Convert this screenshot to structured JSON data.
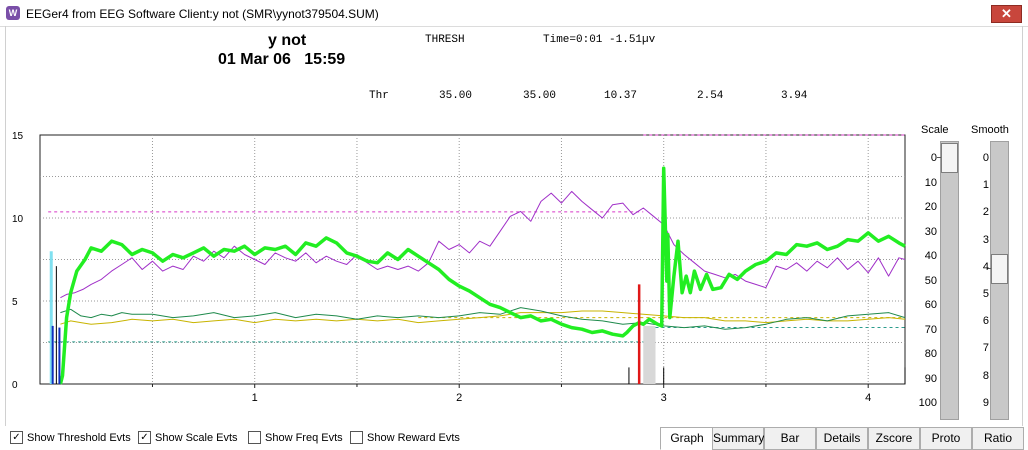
{
  "window": {
    "title": "EEGer4 from EEG Software  Client:y not  (SMR\\yynot379504.SUM)",
    "close_label": "✕"
  },
  "header": {
    "client": "y not",
    "date": "01 Mar 06   15:59",
    "mode": "THRESH",
    "time_readout": "Time=0:01 -1.51µv",
    "thr_label": "Thr",
    "thresholds": [
      "35.00",
      "35.00",
      "10.37",
      "2.54",
      "3.94"
    ]
  },
  "chart_data": {
    "type": "line",
    "xlim": [
      -0.05,
      4.18
    ],
    "ylim": [
      0,
      15
    ],
    "x_ticks": [
      "1",
      "2",
      "3",
      "4"
    ],
    "y_ticks": [
      "0",
      "5",
      "10",
      "15"
    ],
    "grid": true,
    "colors": {
      "bright_green": "#22ee22",
      "magenta": "#a030c8",
      "dark_green": "#1f8a4c",
      "yellow": "#c8b400",
      "pink_threshold": "#d838c8",
      "teal_threshold": "#2c9c8c"
    },
    "series": [
      {
        "color": "bright_green",
        "width": 3.5,
        "points": [
          [
            0.05,
            0
          ],
          [
            0.06,
            0.5
          ],
          [
            0.08,
            4
          ],
          [
            0.1,
            5.5
          ],
          [
            0.13,
            6.8
          ],
          [
            0.17,
            7.5
          ],
          [
            0.2,
            8.2
          ],
          [
            0.25,
            8
          ],
          [
            0.3,
            8.6
          ],
          [
            0.35,
            8.4
          ],
          [
            0.4,
            7.8
          ],
          [
            0.45,
            8.1
          ],
          [
            0.5,
            7.9
          ],
          [
            0.55,
            7.4
          ],
          [
            0.6,
            7.8
          ],
          [
            0.65,
            7.6
          ],
          [
            0.7,
            7.9
          ],
          [
            0.75,
            8.2
          ],
          [
            0.8,
            7.7
          ],
          [
            0.85,
            8.1
          ],
          [
            0.9,
            8
          ],
          [
            0.95,
            8.3
          ],
          [
            1,
            7.8
          ],
          [
            1.05,
            8.2
          ],
          [
            1.1,
            8.1
          ],
          [
            1.15,
            8.3
          ],
          [
            1.2,
            7.8
          ],
          [
            1.25,
            8.5
          ],
          [
            1.3,
            8.3
          ],
          [
            1.35,
            8.8
          ],
          [
            1.4,
            8.5
          ],
          [
            1.45,
            7.9
          ],
          [
            1.5,
            7.7
          ],
          [
            1.55,
            7.4
          ],
          [
            1.6,
            7.3
          ],
          [
            1.65,
            7.9
          ],
          [
            1.7,
            7.5
          ],
          [
            1.75,
            8.1
          ],
          [
            1.8,
            7.7
          ],
          [
            1.85,
            7.3
          ],
          [
            1.9,
            6.9
          ],
          [
            1.95,
            6.3
          ],
          [
            2,
            5.9
          ],
          [
            2.05,
            5.6
          ],
          [
            2.1,
            5.2
          ],
          [
            2.15,
            4.8
          ],
          [
            2.2,
            4.6
          ],
          [
            2.25,
            4.3
          ],
          [
            2.3,
            4
          ],
          [
            2.35,
            4.1
          ],
          [
            2.4,
            3.8
          ],
          [
            2.45,
            3.9
          ],
          [
            2.5,
            3.6
          ],
          [
            2.55,
            3.4
          ],
          [
            2.6,
            3.3
          ],
          [
            2.65,
            3.1
          ],
          [
            2.7,
            3.2
          ],
          [
            2.75,
            3
          ],
          [
            2.8,
            2.9
          ],
          [
            2.82,
            3.1
          ],
          [
            2.85,
            3.5
          ],
          [
            2.88,
            3.7
          ],
          [
            2.9,
            3.6
          ],
          [
            2.93,
            3.9
          ],
          [
            2.97,
            3.6
          ],
          [
            2.99,
            3.5
          ],
          [
            3,
            13
          ],
          [
            3.01,
            8.7
          ],
          [
            3.015,
            6.2
          ],
          [
            3.02,
            9
          ],
          [
            3.03,
            4
          ],
          [
            3.05,
            6.5
          ],
          [
            3.07,
            8.6
          ],
          [
            3.09,
            5.5
          ],
          [
            3.11,
            6.5
          ],
          [
            3.13,
            5.5
          ],
          [
            3.15,
            6.8
          ],
          [
            3.18,
            5.7
          ],
          [
            3.21,
            6.6
          ],
          [
            3.24,
            5.7
          ],
          [
            3.28,
            5.8
          ],
          [
            3.32,
            6.6
          ],
          [
            3.36,
            6.3
          ],
          [
            3.4,
            6.8
          ],
          [
            3.45,
            7.2
          ],
          [
            3.5,
            7.4
          ],
          [
            3.55,
            7.9
          ],
          [
            3.6,
            7.8
          ],
          [
            3.65,
            8.4
          ],
          [
            3.7,
            8.3
          ],
          [
            3.75,
            8.5
          ],
          [
            3.8,
            8.1
          ],
          [
            3.85,
            8.3
          ],
          [
            3.9,
            8.7
          ],
          [
            3.95,
            8.6
          ],
          [
            4,
            9.1
          ],
          [
            4.05,
            8.6
          ],
          [
            4.1,
            8.9
          ],
          [
            4.15,
            8.5
          ],
          [
            4.18,
            8.3
          ]
        ]
      },
      {
        "color": "magenta",
        "width": 1,
        "points": [
          [
            0.05,
            5.2
          ],
          [
            0.08,
            5.4
          ],
          [
            0.12,
            5.5
          ],
          [
            0.16,
            5.7
          ],
          [
            0.2,
            6
          ],
          [
            0.25,
            6.3
          ],
          [
            0.3,
            6.8
          ],
          [
            0.35,
            7.2
          ],
          [
            0.4,
            7.6
          ],
          [
            0.45,
            6.9
          ],
          [
            0.5,
            7.4
          ],
          [
            0.55,
            6.8
          ],
          [
            0.6,
            7.1
          ],
          [
            0.65,
            6.9
          ],
          [
            0.7,
            7.7
          ],
          [
            0.75,
            7.4
          ],
          [
            0.8,
            8
          ],
          [
            0.85,
            7.6
          ],
          [
            0.9,
            8.3
          ],
          [
            0.95,
            7.8
          ],
          [
            1,
            7.5
          ],
          [
            1.05,
            7.2
          ],
          [
            1.1,
            7.9
          ],
          [
            1.15,
            7.6
          ],
          [
            1.2,
            7.4
          ],
          [
            1.25,
            7.9
          ],
          [
            1.3,
            7.3
          ],
          [
            1.35,
            7.7
          ],
          [
            1.4,
            7.4
          ],
          [
            1.45,
            7.2
          ],
          [
            1.5,
            7.8
          ],
          [
            1.55,
            7.3
          ],
          [
            1.6,
            6.9
          ],
          [
            1.65,
            7.1
          ],
          [
            1.7,
            6.9
          ],
          [
            1.75,
            7.1
          ],
          [
            1.8,
            6.8
          ],
          [
            1.85,
            7.3
          ],
          [
            1.9,
            8.6
          ],
          [
            1.95,
            8.1
          ],
          [
            2,
            8.4
          ],
          [
            2.05,
            7.9
          ],
          [
            2.1,
            8.6
          ],
          [
            2.15,
            8.3
          ],
          [
            2.2,
            9.2
          ],
          [
            2.25,
            10.1
          ],
          [
            2.3,
            10.4
          ],
          [
            2.35,
            9.8
          ],
          [
            2.4,
            11
          ],
          [
            2.45,
            11.5
          ],
          [
            2.5,
            10.9
          ],
          [
            2.55,
            11.6
          ],
          [
            2.6,
            11
          ],
          [
            2.65,
            10.5
          ],
          [
            2.7,
            10
          ],
          [
            2.75,
            10.8
          ],
          [
            2.8,
            10.9
          ],
          [
            2.85,
            10.2
          ],
          [
            2.9,
            10.6
          ],
          [
            2.95,
            10.1
          ],
          [
            3,
            9.6
          ],
          [
            3.05,
            8.4
          ],
          [
            3.1,
            7.8
          ],
          [
            3.15,
            7.3
          ],
          [
            3.2,
            6.8
          ],
          [
            3.25,
            6.6
          ],
          [
            3.3,
            6.4
          ],
          [
            3.35,
            6.6
          ],
          [
            3.4,
            6.2
          ],
          [
            3.45,
            6
          ],
          [
            3.5,
            5.8
          ],
          [
            3.55,
            7.1
          ],
          [
            3.6,
            6.9
          ],
          [
            3.65,
            7.3
          ],
          [
            3.7,
            6.8
          ],
          [
            3.75,
            7.4
          ],
          [
            3.8,
            7
          ],
          [
            3.85,
            7.6
          ],
          [
            3.9,
            6.9
          ],
          [
            3.95,
            7.4
          ],
          [
            4,
            6.7
          ],
          [
            4.05,
            7.6
          ],
          [
            4.1,
            6.5
          ],
          [
            4.15,
            7.6
          ],
          [
            4.18,
            7.5
          ]
        ]
      },
      {
        "color": "dark_green",
        "width": 1,
        "points": [
          [
            0.05,
            4.3
          ],
          [
            0.1,
            4.5
          ],
          [
            0.15,
            4.1
          ],
          [
            0.2,
            4
          ],
          [
            0.25,
            4.2
          ],
          [
            0.3,
            4.1
          ],
          [
            0.35,
            4.3
          ],
          [
            0.4,
            4.2
          ],
          [
            0.5,
            4.2
          ],
          [
            0.6,
            4
          ],
          [
            0.7,
            4.1
          ],
          [
            0.8,
            4.3
          ],
          [
            0.9,
            4
          ],
          [
            1,
            4.1
          ],
          [
            1.1,
            4.3
          ],
          [
            1.2,
            4
          ],
          [
            1.3,
            4.2
          ],
          [
            1.4,
            4.1
          ],
          [
            1.5,
            3.9
          ],
          [
            1.6,
            4.1
          ],
          [
            1.7,
            4
          ],
          [
            1.8,
            4.1
          ],
          [
            1.9,
            4
          ],
          [
            2,
            4.1
          ],
          [
            2.1,
            4.3
          ],
          [
            2.2,
            4.2
          ],
          [
            2.3,
            4.6
          ],
          [
            2.4,
            4.4
          ],
          [
            2.5,
            4.1
          ],
          [
            2.6,
            3.9
          ],
          [
            2.7,
            3.8
          ],
          [
            2.8,
            3.6
          ],
          [
            2.9,
            3.7
          ],
          [
            3,
            3.5
          ],
          [
            3.1,
            3.4
          ],
          [
            3.2,
            3.5
          ],
          [
            3.3,
            3.3
          ],
          [
            3.4,
            3.4
          ],
          [
            3.5,
            3.6
          ],
          [
            3.6,
            3.9
          ],
          [
            3.7,
            4
          ],
          [
            3.8,
            3.8
          ],
          [
            3.9,
            4.1
          ],
          [
            4,
            4.2
          ],
          [
            4.1,
            4.3
          ],
          [
            4.18,
            4
          ]
        ]
      },
      {
        "color": "yellow",
        "width": 1,
        "points": [
          [
            0.05,
            3.6
          ],
          [
            0.1,
            3.8
          ],
          [
            0.15,
            3.7
          ],
          [
            0.2,
            3.6
          ],
          [
            0.3,
            3.7
          ],
          [
            0.4,
            3.9
          ],
          [
            0.5,
            3.8
          ],
          [
            0.6,
            3.9
          ],
          [
            0.7,
            3.7
          ],
          [
            0.8,
            3.8
          ],
          [
            0.9,
            3.9
          ],
          [
            1,
            3.7
          ],
          [
            1.1,
            3.9
          ],
          [
            1.2,
            3.8
          ],
          [
            1.3,
            3.9
          ],
          [
            1.4,
            3.8
          ],
          [
            1.5,
            3.9
          ],
          [
            1.6,
            3.8
          ],
          [
            1.7,
            3.9
          ],
          [
            1.8,
            3.7
          ],
          [
            1.9,
            3.8
          ],
          [
            2,
            3.9
          ],
          [
            2.1,
            4
          ],
          [
            2.2,
            4.1
          ],
          [
            2.3,
            4.3
          ],
          [
            2.4,
            4.3
          ],
          [
            2.5,
            4.3
          ],
          [
            2.6,
            4.4
          ],
          [
            2.7,
            4.4
          ],
          [
            2.8,
            4.3
          ],
          [
            2.9,
            4.2
          ],
          [
            3,
            4.1
          ],
          [
            3.1,
            4
          ],
          [
            3.2,
            4
          ],
          [
            3.3,
            3.8
          ],
          [
            3.4,
            3.8
          ],
          [
            3.5,
            3.7
          ],
          [
            3.6,
            3.8
          ],
          [
            3.7,
            3.9
          ],
          [
            3.8,
            3.8
          ],
          [
            3.9,
            3.8
          ],
          [
            4,
            3.9
          ],
          [
            4.1,
            4
          ],
          [
            4.18,
            3.9
          ]
        ]
      }
    ],
    "thresholds": [
      {
        "color": "pink_threshold",
        "y": 10.37,
        "x_from": -0.01,
        "x_to": 2.9
      },
      {
        "color": "pink_threshold",
        "y": 15,
        "x_from": 2.9,
        "x_to": 4.18
      },
      {
        "color": "teal_threshold",
        "y": 2.54,
        "x_from": -0.01,
        "x_to": 2.96
      },
      {
        "color": "teal_threshold",
        "y": 3.4,
        "x_from": 2.96,
        "x_to": 4.18
      },
      {
        "color": "yellow",
        "y": 4,
        "x_from": 1.8,
        "x_to": 4.18
      }
    ],
    "events": [
      {
        "x": 0.005,
        "y0": 0,
        "y1": 8,
        "color": "#80e0f0",
        "w": 3
      },
      {
        "x": 0.012,
        "y0": 0,
        "y1": 3.5,
        "color": "#1030c0",
        "w": 2
      },
      {
        "x": 0.03,
        "y0": 0,
        "y1": 7.1,
        "color": "#000000",
        "w": 1
      },
      {
        "x": 0.045,
        "y0": 0,
        "y1": 3.4,
        "color": "#1030c0",
        "w": 2
      },
      {
        "x": 2.83,
        "y0": 0,
        "y1": 1,
        "color": "#000000",
        "w": 1
      },
      {
        "x": 2.88,
        "y0": 0,
        "y1": 6,
        "color": "#e01818",
        "w": 2.5
      },
      {
        "x": 3,
        "y0": 0,
        "y1": 1,
        "color": "#000000",
        "w": 1
      },
      {
        "x": 4.18,
        "y0": 0,
        "y1": 1,
        "color": "#000000",
        "w": 1
      }
    ]
  },
  "scale_panel": {
    "label": "Scale",
    "values": [
      "0",
      "10",
      "20",
      "30",
      "40",
      "50",
      "60",
      "70",
      "80",
      "90",
      "100"
    ],
    "value": 0
  },
  "smooth_panel": {
    "label": "Smooth",
    "values": [
      "0",
      "1",
      "2",
      "3",
      "4",
      "5",
      "6",
      "7",
      "8",
      "9"
    ],
    "value": 4
  },
  "checkboxes": [
    {
      "label": "Show Threshold Evts",
      "checked": "✓"
    },
    {
      "label": "Show Scale Evts",
      "checked": "✓"
    },
    {
      "label": "Show Freq Evts",
      "checked": ""
    },
    {
      "label": "Show Reward Evts",
      "checked": ""
    }
  ],
  "buttons": [
    "Graph",
    "Summary",
    "Bar",
    "Details",
    "Zscore",
    "Proto",
    "Ratio"
  ]
}
